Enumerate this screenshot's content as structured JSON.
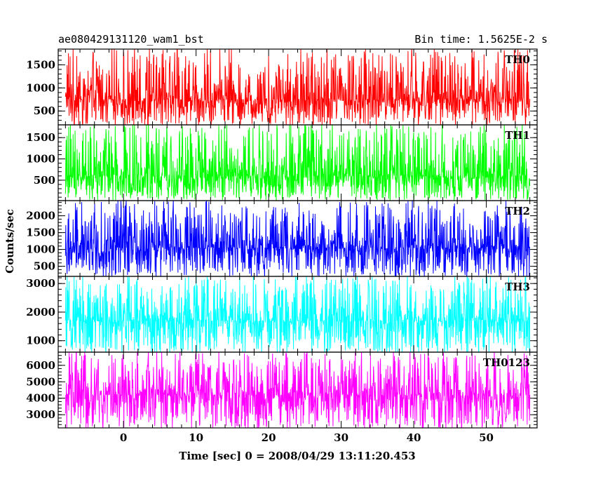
{
  "header": {
    "left_title": "ae080429131120_wam1_bst",
    "right_title": "Bin time: 1.5625E-2 s"
  },
  "chart_data": {
    "type": "line",
    "title": "ae080429131120_wam1_bst",
    "subtitle": "Bin time: 1.5625E-2 s",
    "xlabel": "Time [sec] 0 = 2008/04/29 13:11:20.453",
    "ylabel": "Counts/sec",
    "xlim": [
      -9,
      57
    ],
    "x_ticks": [
      0,
      10,
      20,
      30,
      40,
      50
    ],
    "x_tick_labels": [
      "0",
      "10",
      "20",
      "30",
      "40",
      "50"
    ],
    "data_x_range": [
      -8,
      56
    ],
    "grid": false,
    "legend": "none",
    "panels": [
      {
        "name": "TH0",
        "color": "#ff0000",
        "ylim": [
          200,
          1840
        ],
        "y_ticks": [
          500,
          1000,
          1500
        ],
        "y_tick_labels": [
          "500",
          "1000",
          "1500"
        ],
        "approx_mean": 750,
        "approx_low": 200,
        "approx_high": 1840
      },
      {
        "name": "TH1",
        "color": "#00ff00",
        "ylim": [
          20,
          1800
        ],
        "y_ticks": [
          500,
          1000,
          1500
        ],
        "y_tick_labels": [
          "500",
          "1000",
          "1500"
        ],
        "approx_mean": 600,
        "approx_low": 50,
        "approx_high": 1800
      },
      {
        "name": "TH2",
        "color": "#0000ff",
        "ylim": [
          200,
          2450
        ],
        "y_ticks": [
          500,
          1000,
          1500,
          2000
        ],
        "y_tick_labels": [
          "500",
          "1000",
          "1500",
          "2000"
        ],
        "approx_mean": 1050,
        "approx_low": 200,
        "approx_high": 2400
      },
      {
        "name": "TH3",
        "color": "#00ffff",
        "ylim": [
          600,
          3250
        ],
        "y_ticks": [
          1000,
          2000,
          3000
        ],
        "y_tick_labels": [
          "1000",
          "2000",
          "3000"
        ],
        "approx_mean": 1700,
        "approx_low": 600,
        "approx_high": 3250
      },
      {
        "name": "TH0123",
        "color": "#ff00ff",
        "ylim": [
          2200,
          6800
        ],
        "y_ticks": [
          3000,
          4000,
          5000,
          6000
        ],
        "y_tick_labels": [
          "3000",
          "4000",
          "5000",
          "6000"
        ],
        "approx_mean": 4200,
        "approx_low": 2200,
        "approx_high": 6800
      }
    ]
  }
}
